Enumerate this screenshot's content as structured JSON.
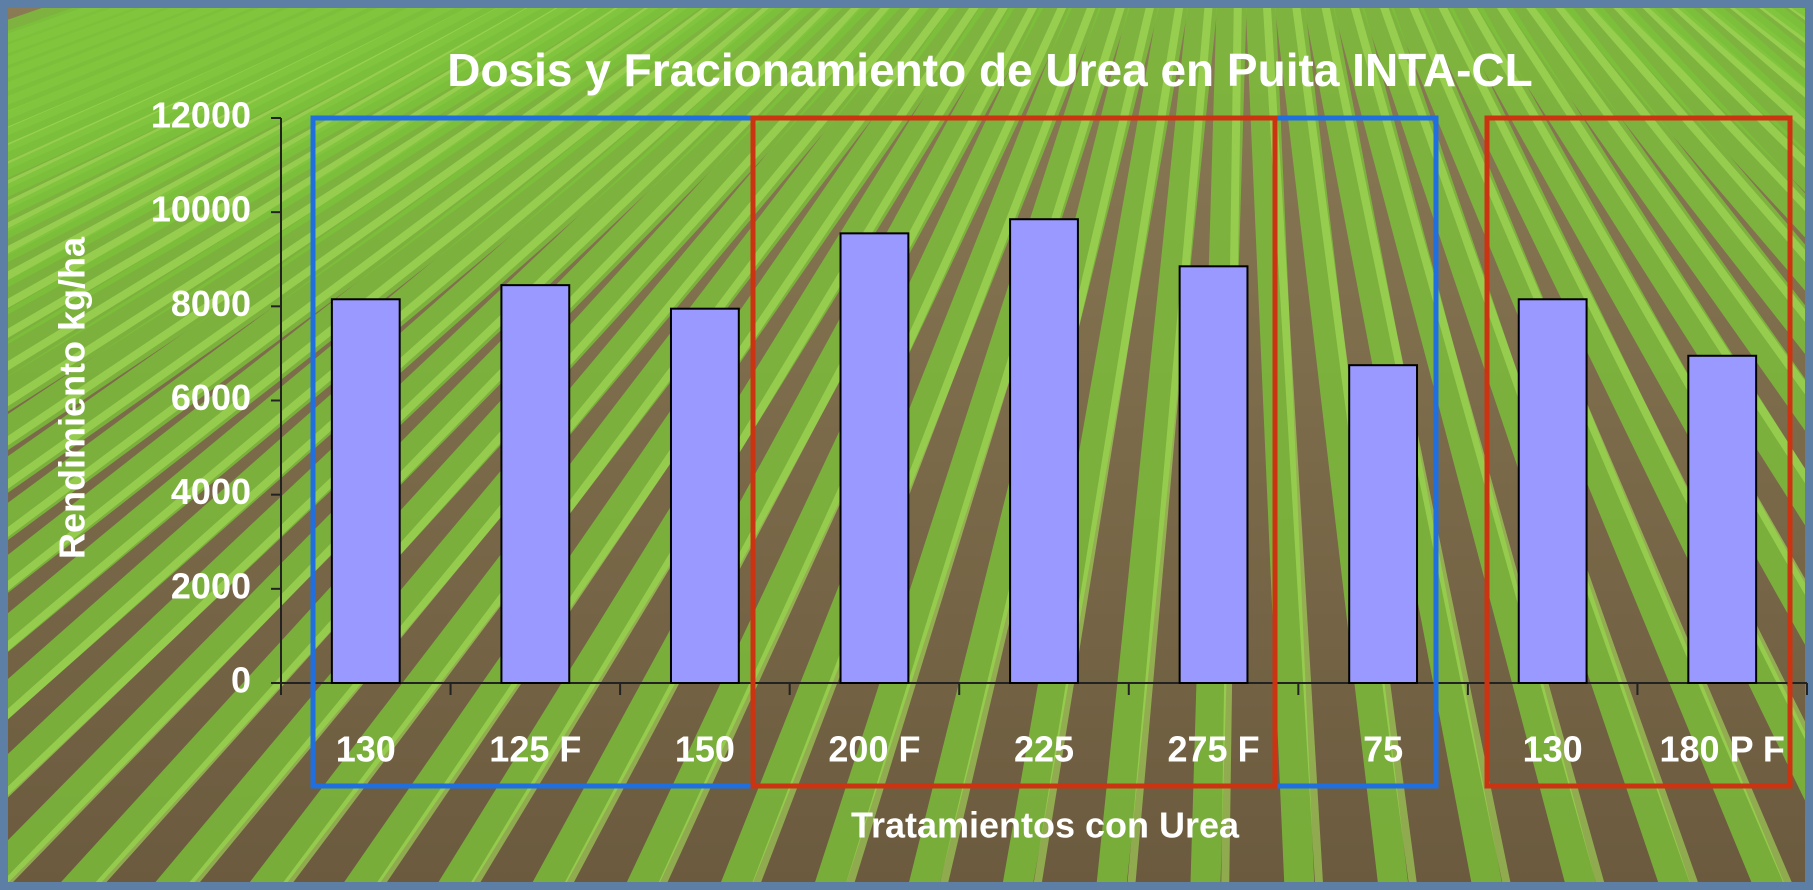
{
  "chart_data": {
    "type": "bar",
    "title": "Dosis y Fracionamiento de Urea en Puita INTA-CL",
    "x_label": "Tratamientos con Urea",
    "y_label": "Rendimiento kg/ha",
    "categories": [
      "130",
      "125 F",
      "150",
      "200 F",
      "225",
      "275 F",
      "75",
      "130",
      "180 P F"
    ],
    "values": [
      8150,
      8450,
      7950,
      9550,
      9850,
      8850,
      6750,
      8150,
      6950
    ],
    "color": "#9999ff",
    "ylim": [
      0,
      12000
    ],
    "yticks": [
      0,
      2000,
      4000,
      6000,
      8000,
      10000,
      12000
    ],
    "grid": false
  }
}
